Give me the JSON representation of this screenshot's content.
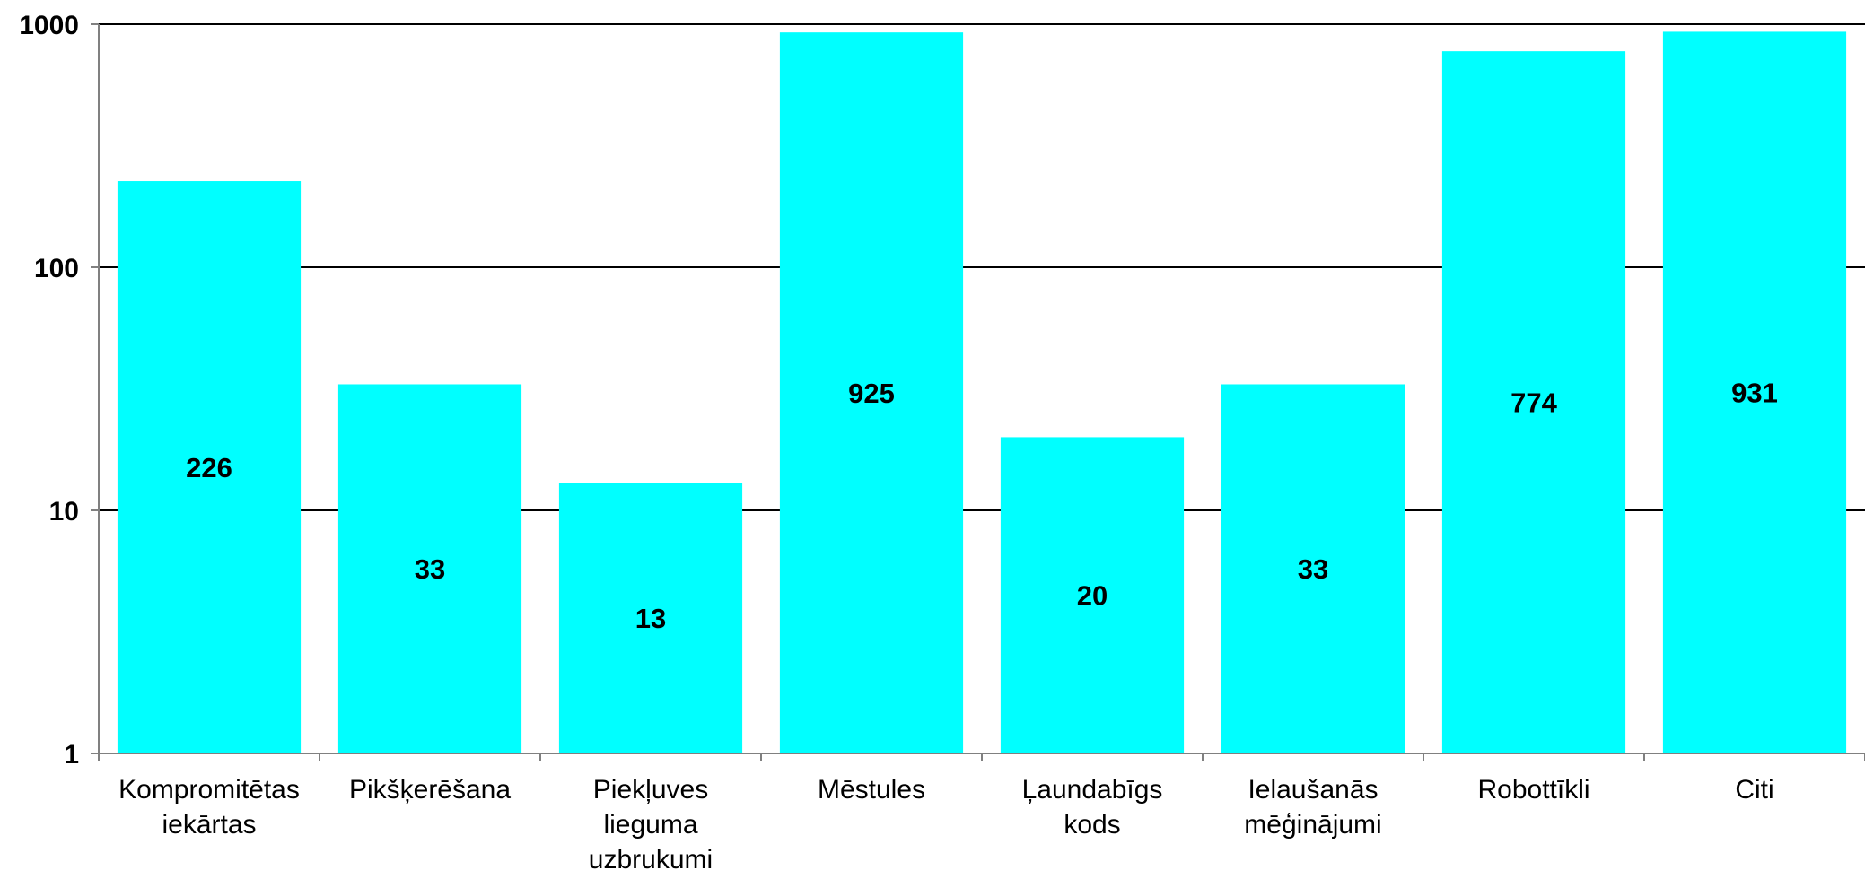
{
  "chart_data": {
    "type": "bar",
    "categories": [
      [
        "Kompromitētas",
        "iekārtas"
      ],
      [
        "Pikšķerēšana"
      ],
      [
        "Piekļuves",
        "lieguma",
        "uzbrukumi"
      ],
      [
        "Mēstules"
      ],
      [
        "Ļaundabīgs",
        "kods"
      ],
      [
        "Ielaušanās",
        "mēģinājumi"
      ],
      [
        "Robottīkli"
      ],
      [
        "Citi"
      ]
    ],
    "values": [
      226,
      33,
      13,
      925,
      20,
      33,
      774,
      931
    ],
    "title": "",
    "xlabel": "",
    "ylabel": "",
    "yscale": "log",
    "ylim": [
      1,
      1000
    ],
    "yticks": [
      "1",
      "10",
      "100",
      "1000"
    ],
    "grid": true,
    "legend": "none",
    "bar_color": "#00FFFF",
    "grid_color": "#000000"
  }
}
